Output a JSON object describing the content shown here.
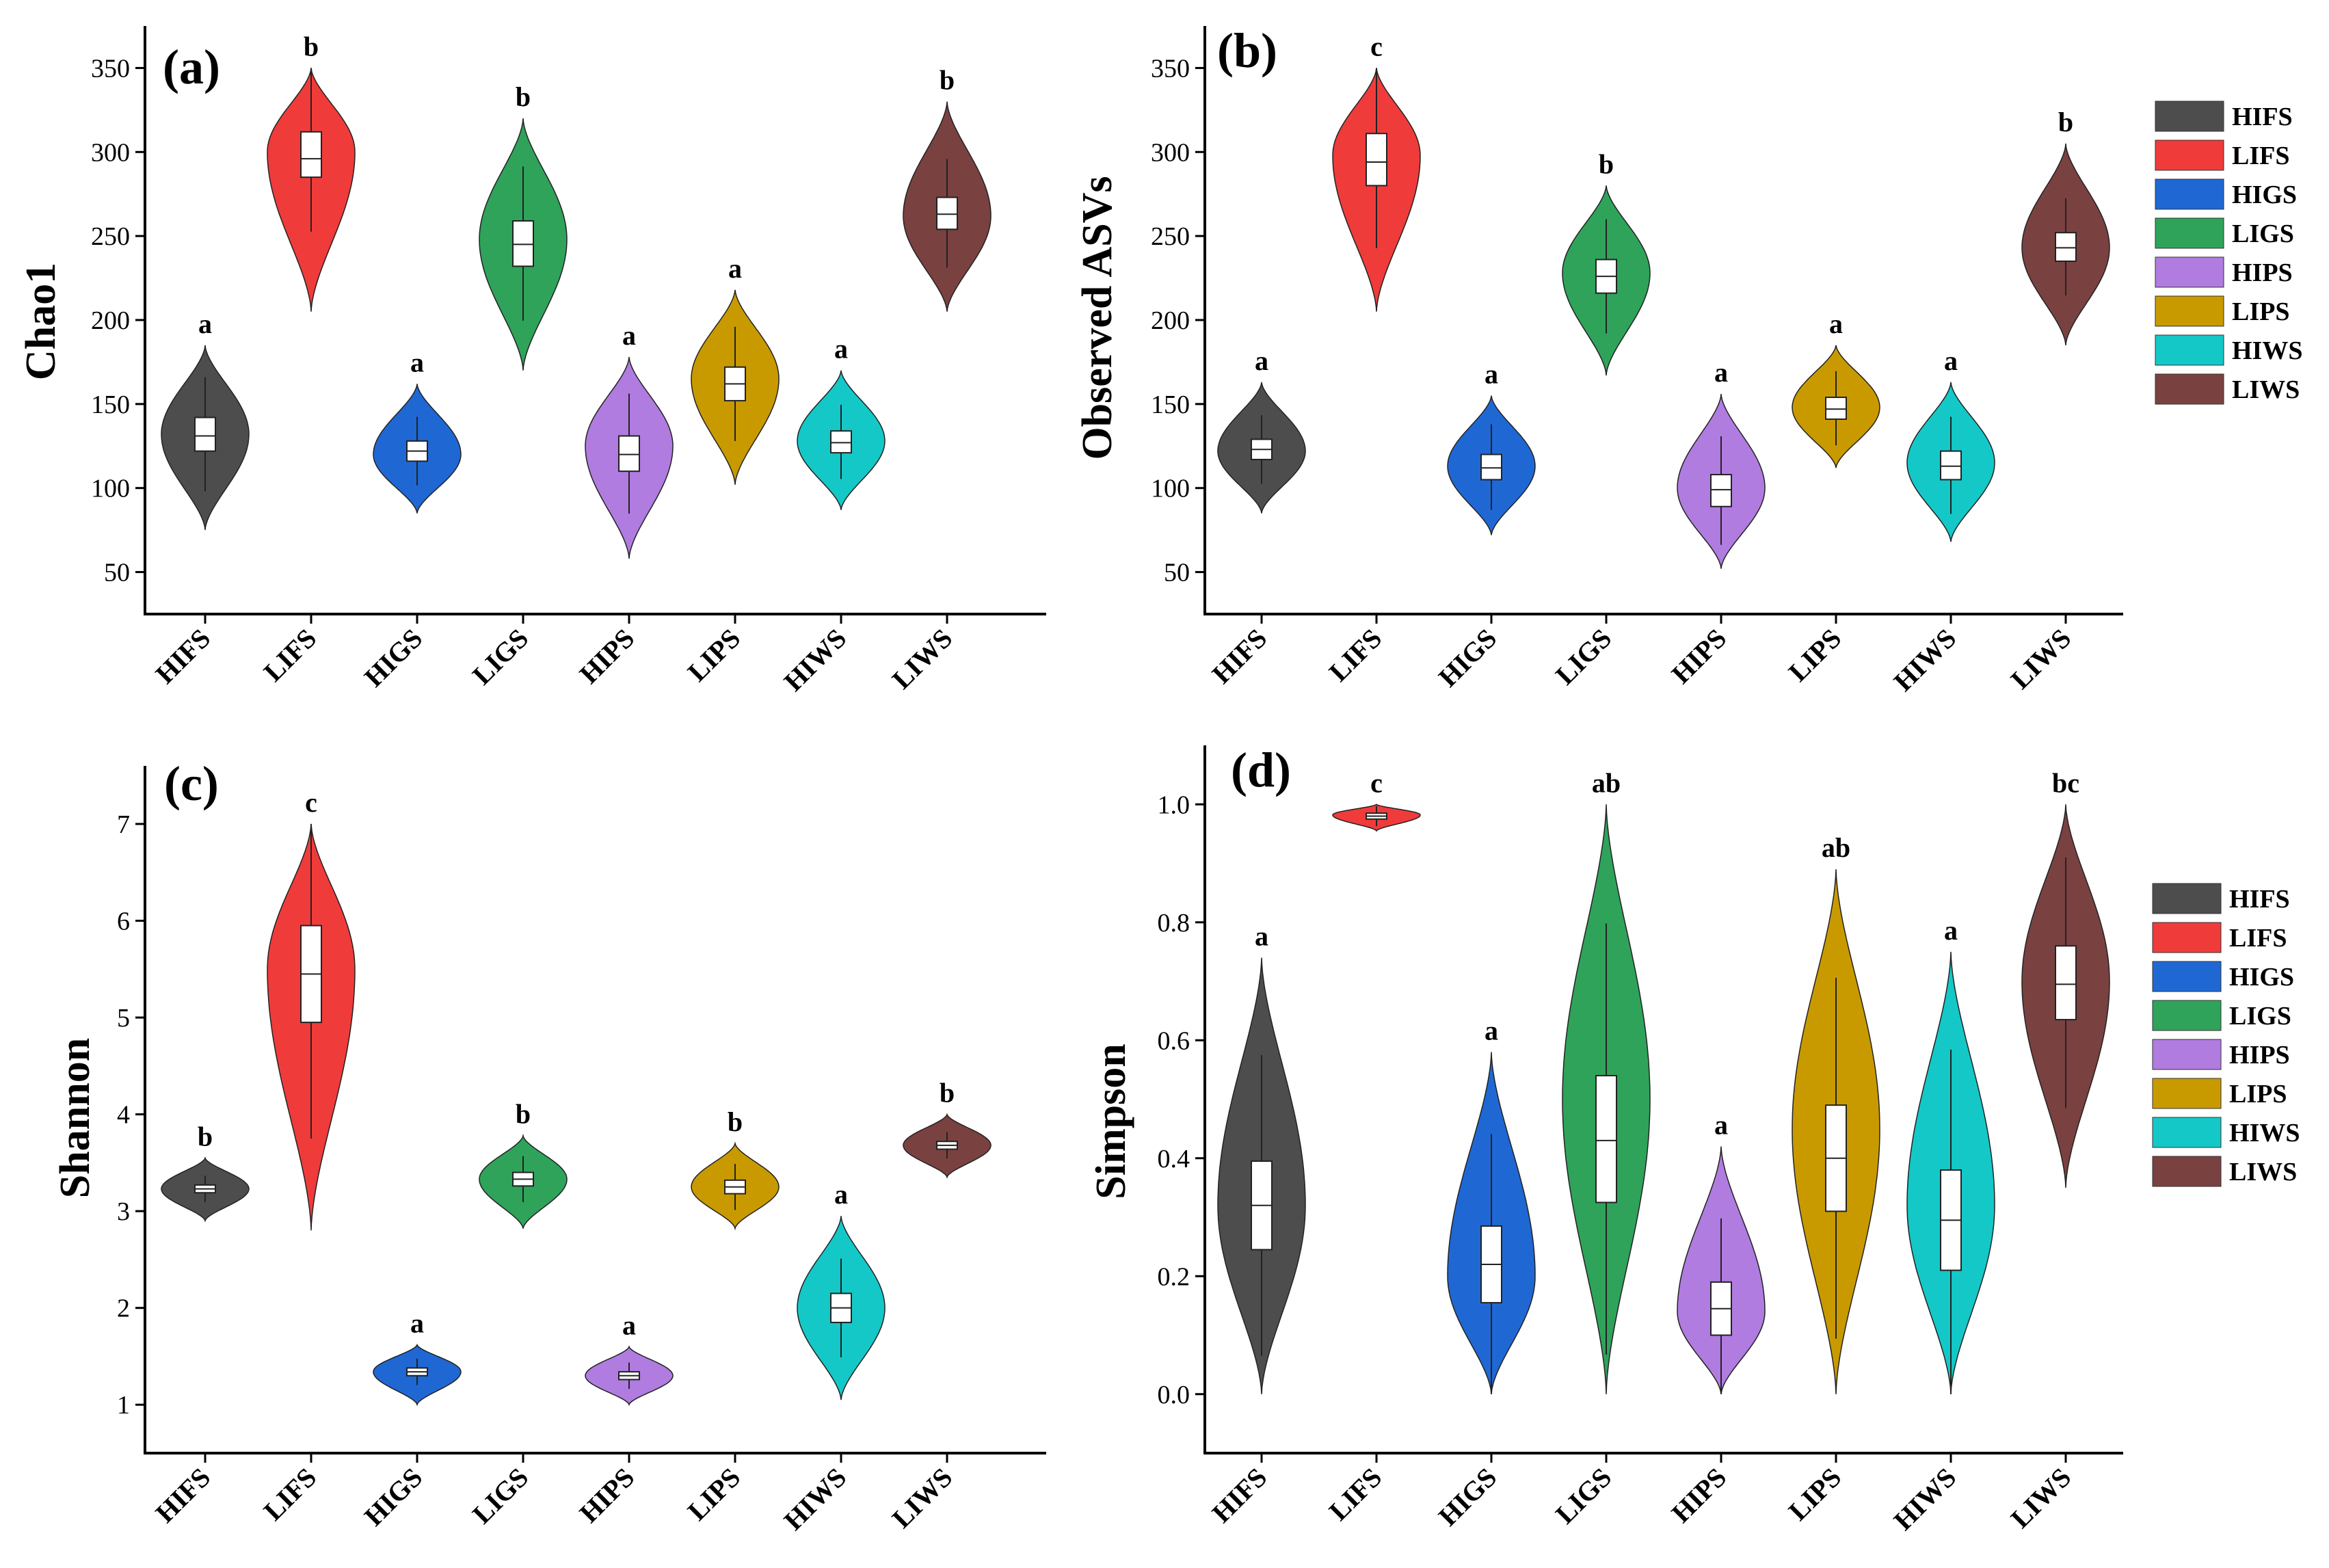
{
  "chart_data": [
    {
      "panel": "(a)",
      "type": "violin",
      "ylabel": "Chao1",
      "ylim": [
        25,
        375
      ],
      "yticks": [
        50,
        100,
        150,
        200,
        250,
        300,
        350
      ],
      "categories": [
        "HIFS",
        "LIFS",
        "HIGS",
        "LIGS",
        "HIPS",
        "LIPS",
        "HIWS",
        "LIWS"
      ],
      "colors": [
        "#4d4d4d",
        "#f03b3b",
        "#1f68d4",
        "#2fa35a",
        "#b07ce0",
        "#c99a00",
        "#14c8c8",
        "#7a4141"
      ],
      "series": [
        {
          "name": "HIFS",
          "min": 75,
          "q1": 122,
          "median": 131,
          "q3": 142,
          "max": 185,
          "mode": 132,
          "letter": "a"
        },
        {
          "name": "LIFS",
          "min": 205,
          "q1": 285,
          "median": 296,
          "q3": 312,
          "max": 350,
          "mode": 300,
          "letter": "b"
        },
        {
          "name": "HIGS",
          "min": 85,
          "q1": 116,
          "median": 122,
          "q3": 128,
          "max": 162,
          "mode": 120,
          "letter": "a"
        },
        {
          "name": "LIGS",
          "min": 170,
          "q1": 232,
          "median": 245,
          "q3": 259,
          "max": 320,
          "mode": 248,
          "letter": "b"
        },
        {
          "name": "HIPS",
          "min": 58,
          "q1": 110,
          "median": 120,
          "q3": 131,
          "max": 178,
          "mode": 125,
          "letter": "a"
        },
        {
          "name": "LIPS",
          "min": 102,
          "q1": 152,
          "median": 162,
          "q3": 172,
          "max": 218,
          "mode": 165,
          "letter": "a"
        },
        {
          "name": "HIWS",
          "min": 87,
          "q1": 121,
          "median": 127,
          "q3": 134,
          "max": 170,
          "mode": 128,
          "letter": "a"
        },
        {
          "name": "LIWS",
          "min": 205,
          "q1": 254,
          "median": 263,
          "q3": 273,
          "max": 330,
          "mode": 262,
          "letter": "b"
        }
      ]
    },
    {
      "panel": "(b)",
      "type": "violin",
      "ylabel": "Observed ASVs",
      "ylim": [
        25,
        375
      ],
      "yticks": [
        50,
        100,
        150,
        200,
        250,
        300,
        350
      ],
      "categories": [
        "HIFS",
        "LIFS",
        "HIGS",
        "LIGS",
        "HIPS",
        "LIPS",
        "HIWS",
        "LIWS"
      ],
      "colors": [
        "#4d4d4d",
        "#f03b3b",
        "#1f68d4",
        "#2fa35a",
        "#b07ce0",
        "#c99a00",
        "#14c8c8",
        "#7a4141"
      ],
      "series": [
        {
          "name": "HIFS",
          "min": 85,
          "q1": 117,
          "median": 123,
          "q3": 129,
          "max": 163,
          "mode": 122,
          "letter": "a"
        },
        {
          "name": "LIFS",
          "min": 205,
          "q1": 280,
          "median": 294,
          "q3": 311,
          "max": 350,
          "mode": 298,
          "letter": "c"
        },
        {
          "name": "HIGS",
          "min": 72,
          "q1": 105,
          "median": 112,
          "q3": 120,
          "max": 155,
          "mode": 113,
          "letter": "a"
        },
        {
          "name": "LIGS",
          "min": 167,
          "q1": 216,
          "median": 226,
          "q3": 236,
          "max": 280,
          "mode": 228,
          "letter": "b"
        },
        {
          "name": "HIPS",
          "min": 52,
          "q1": 89,
          "median": 99,
          "q3": 108,
          "max": 156,
          "mode": 100,
          "letter": "a"
        },
        {
          "name": "LIPS",
          "min": 112,
          "q1": 141,
          "median": 147,
          "q3": 154,
          "max": 185,
          "mode": 148,
          "letter": "a"
        },
        {
          "name": "HIWS",
          "min": 68,
          "q1": 105,
          "median": 113,
          "q3": 122,
          "max": 163,
          "mode": 115,
          "letter": "a"
        },
        {
          "name": "LIWS",
          "min": 185,
          "q1": 235,
          "median": 243,
          "q3": 252,
          "max": 305,
          "mode": 243,
          "letter": "b"
        }
      ]
    },
    {
      "panel": "(c)",
      "type": "violin",
      "ylabel": "Shannon",
      "ylim": [
        0.5,
        7.6
      ],
      "yticks": [
        1,
        2,
        3,
        4,
        5,
        6,
        7
      ],
      "categories": [
        "HIFS",
        "LIFS",
        "HIGS",
        "LIGS",
        "HIPS",
        "LIPS",
        "HIWS",
        "LIWS"
      ],
      "colors": [
        "#4d4d4d",
        "#f03b3b",
        "#1f68d4",
        "#2fa35a",
        "#b07ce0",
        "#c99a00",
        "#14c8c8",
        "#7a4141"
      ],
      "series": [
        {
          "name": "HIFS",
          "min": 2.9,
          "q1": 3.19,
          "median": 3.23,
          "q3": 3.27,
          "max": 3.55,
          "mode": 3.23,
          "letter": "b"
        },
        {
          "name": "LIFS",
          "min": 2.8,
          "q1": 4.95,
          "median": 5.45,
          "q3": 5.95,
          "max": 7.0,
          "mode": 5.5,
          "letter": "c"
        },
        {
          "name": "HIGS",
          "min": 1.0,
          "q1": 1.3,
          "median": 1.34,
          "q3": 1.38,
          "max": 1.62,
          "mode": 1.34,
          "letter": "a"
        },
        {
          "name": "LIGS",
          "min": 2.82,
          "q1": 3.26,
          "median": 3.33,
          "q3": 3.4,
          "max": 3.78,
          "mode": 3.33,
          "letter": "b"
        },
        {
          "name": "HIPS",
          "min": 1.0,
          "q1": 1.26,
          "median": 1.3,
          "q3": 1.34,
          "max": 1.6,
          "mode": 1.3,
          "letter": "a"
        },
        {
          "name": "LIPS",
          "min": 2.82,
          "q1": 3.18,
          "median": 3.25,
          "q3": 3.32,
          "max": 3.7,
          "mode": 3.25,
          "letter": "b"
        },
        {
          "name": "HIWS",
          "min": 1.05,
          "q1": 1.85,
          "median": 2.0,
          "q3": 2.15,
          "max": 2.95,
          "mode": 2.0,
          "letter": "a"
        },
        {
          "name": "LIWS",
          "min": 3.35,
          "q1": 3.64,
          "median": 3.68,
          "q3": 3.72,
          "max": 4.0,
          "mode": 3.68,
          "letter": "b"
        }
      ]
    },
    {
      "panel": "(d)",
      "type": "violin",
      "ylabel": "Simpson",
      "ylim": [
        -0.1,
        1.1
      ],
      "yticks": [
        "0.0",
        "0.2",
        "0.4",
        "0.6",
        "0.8",
        "1.0"
      ],
      "categories": [
        "HIFS",
        "LIFS",
        "HIGS",
        "LIGS",
        "HIPS",
        "LIPS",
        "HIWS",
        "LIWS"
      ],
      "colors": [
        "#4d4d4d",
        "#f03b3b",
        "#1f68d4",
        "#2fa35a",
        "#b07ce0",
        "#c99a00",
        "#14c8c8",
        "#7a4141"
      ],
      "series": [
        {
          "name": "HIFS",
          "min": 0.0,
          "q1": 0.245,
          "median": 0.32,
          "q3": 0.395,
          "max": 0.74,
          "mode": 0.32,
          "letter": "a"
        },
        {
          "name": "LIFS",
          "min": 0.955,
          "q1": 0.975,
          "median": 0.98,
          "q3": 0.985,
          "max": 1.0,
          "mode": 0.982,
          "letter": "c"
        },
        {
          "name": "HIGS",
          "min": 0.0,
          "q1": 0.155,
          "median": 0.22,
          "q3": 0.285,
          "max": 0.58,
          "mode": 0.2,
          "letter": "a"
        },
        {
          "name": "LIGS",
          "min": 0.0,
          "q1": 0.325,
          "median": 0.43,
          "q3": 0.54,
          "max": 1.0,
          "mode": 0.5,
          "letter": "ab"
        },
        {
          "name": "HIPS",
          "min": 0.0,
          "q1": 0.1,
          "median": 0.145,
          "q3": 0.19,
          "max": 0.42,
          "mode": 0.14,
          "letter": "a"
        },
        {
          "name": "LIPS",
          "min": 0.0,
          "q1": 0.31,
          "median": 0.4,
          "q3": 0.49,
          "max": 0.89,
          "mode": 0.45,
          "letter": "ab"
        },
        {
          "name": "HIWS",
          "min": 0.0,
          "q1": 0.21,
          "median": 0.295,
          "q3": 0.38,
          "max": 0.75,
          "mode": 0.32,
          "letter": "a"
        },
        {
          "name": "LIWS",
          "min": 0.35,
          "q1": 0.635,
          "median": 0.695,
          "q3": 0.76,
          "max": 1.0,
          "mode": 0.7,
          "letter": "bc"
        }
      ]
    }
  ],
  "legends": [
    {
      "items": [
        {
          "label": "HIFS",
          "color": "#4d4d4d"
        },
        {
          "label": "LIFS",
          "color": "#f03b3b"
        },
        {
          "label": "HIGS",
          "color": "#1f68d4"
        },
        {
          "label": "LIGS",
          "color": "#2fa35a"
        },
        {
          "label": "HIPS",
          "color": "#b07ce0"
        },
        {
          "label": "LIPS",
          "color": "#c99a00"
        },
        {
          "label": "HIWS",
          "color": "#14c8c8"
        },
        {
          "label": "LIWS",
          "color": "#7a4141"
        }
      ]
    },
    {
      "items": [
        {
          "label": "HIFS",
          "color": "#4d4d4d"
        },
        {
          "label": "LIFS",
          "color": "#f03b3b"
        },
        {
          "label": "HIGS",
          "color": "#1f68d4"
        },
        {
          "label": "LIGS",
          "color": "#2fa35a"
        },
        {
          "label": "HIPS",
          "color": "#b07ce0"
        },
        {
          "label": "LIPS",
          "color": "#c99a00"
        },
        {
          "label": "HIWS",
          "color": "#14c8c8"
        },
        {
          "label": "LIWS",
          "color": "#7a4141"
        }
      ]
    }
  ]
}
